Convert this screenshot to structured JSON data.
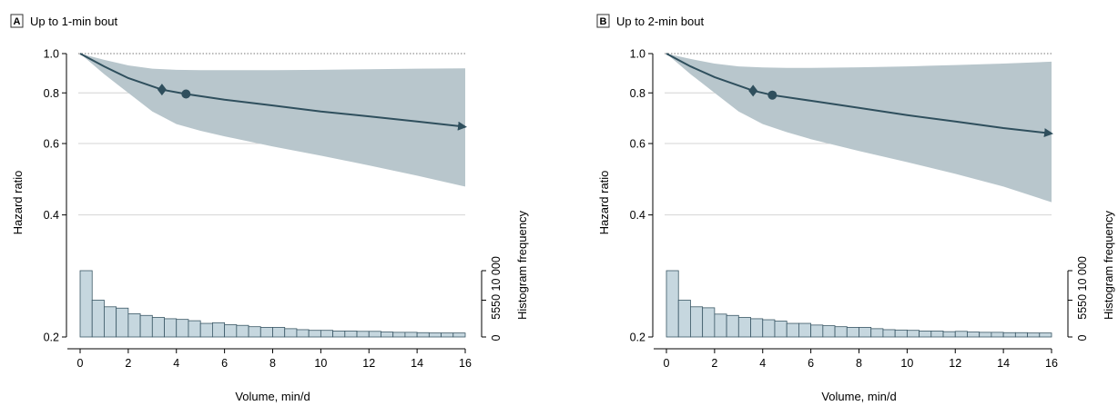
{
  "chart_data": [
    {
      "panel": "A",
      "title": "Up to 1-min bout",
      "type": "line",
      "xlabel": "Volume, min/d",
      "ylabel": "Hazard ratio",
      "y2label": "Histogram frequency",
      "xlim": [
        0,
        16
      ],
      "ylim": [
        0.2,
        1.0
      ],
      "y_scale": "log",
      "x_ticks": [
        0,
        2,
        4,
        6,
        8,
        10,
        12,
        14,
        16
      ],
      "x_tick_labels": [
        "0",
        "2",
        "4",
        "6",
        "8",
        "10",
        "12",
        "14",
        "16"
      ],
      "y_ticks": [
        0.2,
        0.4,
        0.6,
        0.8,
        1.0
      ],
      "y_tick_labels": [
        "0.2",
        "0.4",
        "0.6",
        "0.8",
        "1.0"
      ],
      "y2_ticks": [
        0,
        5550,
        10000
      ],
      "y2_tick_labels": [
        "0",
        "5550",
        "10 000"
      ],
      "hazard_curve": {
        "x": [
          0,
          1,
          2,
          3.4,
          4.4,
          6,
          8,
          10,
          12,
          14,
          16
        ],
        "y": [
          1.0,
          0.93,
          0.87,
          0.815,
          0.795,
          0.77,
          0.745,
          0.72,
          0.7,
          0.68,
          0.66
        ]
      },
      "ci_upper": {
        "x": [
          0,
          1,
          2,
          3,
          4,
          5,
          6,
          8,
          10,
          12,
          14,
          16
        ],
        "y": [
          1.0,
          0.965,
          0.935,
          0.918,
          0.912,
          0.91,
          0.91,
          0.91,
          0.912,
          0.915,
          0.918,
          0.92
        ]
      },
      "ci_lower": {
        "x": [
          0,
          1,
          2,
          3,
          4,
          5,
          6,
          8,
          10,
          12,
          14,
          16
        ],
        "y": [
          1.0,
          0.89,
          0.8,
          0.72,
          0.67,
          0.645,
          0.625,
          0.59,
          0.56,
          0.53,
          0.5,
          0.47
        ]
      },
      "markers": [
        {
          "shape": "diamond",
          "x": 3.4,
          "y": 0.815
        },
        {
          "shape": "circle",
          "x": 4.4,
          "y": 0.795
        }
      ],
      "histogram": {
        "bin_width": 0.5,
        "bin_start": 0,
        "frequencies": [
          10000,
          5550,
          4550,
          4350,
          3500,
          3250,
          2950,
          2750,
          2650,
          2450,
          2050,
          2150,
          1850,
          1750,
          1550,
          1450,
          1450,
          1250,
          1100,
          1000,
          1000,
          900,
          900,
          850,
          850,
          750,
          700,
          700,
          650,
          600,
          600,
          600
        ]
      }
    },
    {
      "panel": "B",
      "title": "Up to 2-min bout",
      "type": "line",
      "xlabel": "Volume, min/d",
      "ylabel": "Hazard ratio",
      "y2label": "Histogram frequency",
      "xlim": [
        0,
        16
      ],
      "ylim": [
        0.2,
        1.0
      ],
      "y_scale": "log",
      "x_ticks": [
        0,
        2,
        4,
        6,
        8,
        10,
        12,
        14,
        16
      ],
      "x_tick_labels": [
        "0",
        "2",
        "4",
        "6",
        "8",
        "10",
        "12",
        "14",
        "16"
      ],
      "y_ticks": [
        0.2,
        0.4,
        0.6,
        0.8,
        1.0
      ],
      "y_tick_labels": [
        "0.2",
        "0.4",
        "0.6",
        "0.8",
        "1.0"
      ],
      "y2_ticks": [
        0,
        5550,
        10000
      ],
      "y2_tick_labels": [
        "0",
        "5550",
        "10 000"
      ],
      "hazard_curve": {
        "x": [
          0,
          1,
          2,
          3.6,
          4.4,
          6,
          8,
          10,
          12,
          14,
          16
        ],
        "y": [
          1.0,
          0.93,
          0.875,
          0.81,
          0.79,
          0.765,
          0.735,
          0.705,
          0.68,
          0.655,
          0.635
        ]
      },
      "ci_upper": {
        "x": [
          0,
          1,
          2,
          3,
          4,
          5,
          6,
          8,
          10,
          12,
          14,
          16
        ],
        "y": [
          1.0,
          0.97,
          0.945,
          0.93,
          0.924,
          0.922,
          0.922,
          0.925,
          0.93,
          0.937,
          0.945,
          0.955
        ]
      },
      "ci_lower": {
        "x": [
          0,
          1,
          2,
          3,
          4,
          5,
          6,
          8,
          10,
          12,
          14,
          16
        ],
        "y": [
          1.0,
          0.89,
          0.8,
          0.72,
          0.67,
          0.64,
          0.615,
          0.575,
          0.54,
          0.505,
          0.47,
          0.43
        ]
      },
      "markers": [
        {
          "shape": "diamond",
          "x": 3.6,
          "y": 0.81
        },
        {
          "shape": "circle",
          "x": 4.4,
          "y": 0.79
        }
      ],
      "histogram": {
        "bin_width": 0.5,
        "bin_start": 0,
        "frequencies": [
          10000,
          5550,
          4550,
          4400,
          3450,
          3250,
          2950,
          2750,
          2600,
          2400,
          2050,
          2050,
          1800,
          1700,
          1550,
          1450,
          1450,
          1250,
          1100,
          1050,
          1000,
          900,
          900,
          800,
          850,
          750,
          700,
          700,
          650,
          650,
          600,
          600
        ]
      }
    }
  ]
}
